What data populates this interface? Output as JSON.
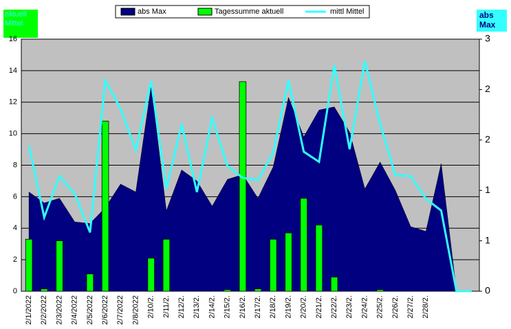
{
  "chart_data": {
    "type": "combo",
    "corner_labels": [
      "aktuell Mittel",
      "abs Max"
    ],
    "categories": [
      "2/1/2022",
      "2/2/2022",
      "2/3/2022",
      "2/4/2022",
      "2/5/2022",
      "2/6/2022",
      "2/7/2022",
      "2/8/2022",
      "2/10/2.",
      "2/11/2.",
      "2/12/2.",
      "2/13/2.",
      "2/14/2.",
      "2/15/2.",
      "2/16/2.",
      "2/17/2.",
      "2/18/2.",
      "2/19/2.",
      "2/20/2.",
      "2/21/2.",
      "2/22/2.",
      "2/23/2.",
      "2/24/2.",
      "2/25/2.",
      "2/26/2.",
      "2/27/2.",
      "2/28/2.",
      null,
      null,
      null
    ],
    "series": [
      {
        "name": "abs Max",
        "type": "area",
        "color": "#000080",
        "values": [
          6.3,
          5.6,
          5.9,
          4.4,
          4.3,
          5.3,
          6.8,
          6.3,
          13.0,
          5.1,
          7.7,
          7.0,
          5.4,
          7.1,
          7.4,
          5.9,
          7.9,
          12.3,
          9.8,
          11.5,
          11.7,
          10.1,
          6.5,
          8.2,
          6.4,
          4.1,
          3.8,
          8.1,
          0,
          0
        ]
      },
      {
        "name": "Tagessumme aktuell",
        "type": "bar",
        "color": "#00ff00",
        "values": [
          3.3,
          0.15,
          3.2,
          0,
          1.1,
          10.8,
          0,
          0,
          2.1,
          3.3,
          0,
          0,
          0,
          0.1,
          13.3,
          0.15,
          3.3,
          3.7,
          5.9,
          4.2,
          0.9,
          0,
          0,
          0.1,
          0,
          0,
          0,
          0,
          0,
          0
        ]
      },
      {
        "name": "mittl Mittel",
        "type": "line",
        "axis": "y2",
        "color": "#33ffff",
        "values": [
          1.73,
          0.88,
          1.37,
          1.16,
          0.7,
          2.51,
          2.17,
          1.68,
          2.5,
          1.22,
          1.99,
          1.18,
          2.06,
          1.49,
          1.35,
          1.32,
          1.65,
          2.51,
          1.66,
          1.54,
          2.69,
          1.69,
          2.74,
          1.99,
          1.38,
          1.37,
          1.1,
          0.96,
          0,
          0
        ]
      }
    ],
    "ylim": [
      0,
      16
    ],
    "yticks": [
      0,
      2,
      4,
      6,
      8,
      10,
      12,
      14,
      16
    ],
    "y2lim": [
      0,
      3
    ],
    "y2ticks": [
      0,
      {
        "value": 0.6,
        "label": "1"
      },
      {
        "value": 1.2,
        "label": "1"
      },
      {
        "value": 1.8,
        "label": "2"
      },
      {
        "value": 2.4,
        "label": "2"
      },
      3
    ],
    "grid": true,
    "legend": "top"
  }
}
